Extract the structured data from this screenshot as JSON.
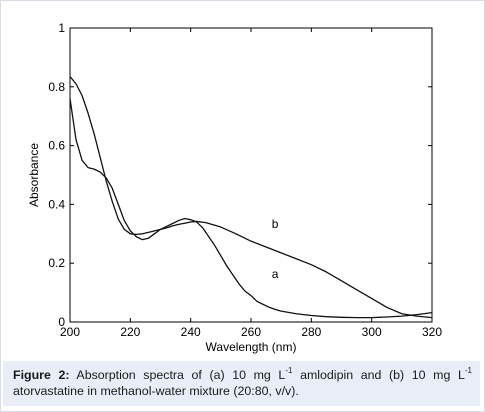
{
  "chart_data": {
    "type": "line",
    "xlabel": "Wavelength (nm)",
    "ylabel": "Absorbance",
    "xlim": [
      200,
      320
    ],
    "ylim": [
      0,
      1
    ],
    "x_ticks": [
      200,
      220,
      240,
      260,
      280,
      300,
      320
    ],
    "y_ticks": [
      0,
      0.2,
      0.4,
      0.6,
      0.8,
      1
    ],
    "x_tick_labels": [
      "200",
      "220",
      "240",
      "260",
      "280",
      "300",
      "320"
    ],
    "y_tick_labels": [
      "0",
      "0.2",
      "0.4",
      "0.6",
      "0.8",
      "1"
    ],
    "grid": false,
    "series": [
      {
        "name": "a",
        "x": [
          200,
          202,
          204,
          206,
          208,
          210,
          212,
          214,
          216,
          218,
          220,
          222,
          224,
          226,
          228,
          230,
          232,
          234,
          236,
          238,
          240,
          242,
          244,
          246,
          248,
          250,
          252,
          254,
          256,
          258,
          260,
          262,
          264,
          266,
          268,
          270,
          275,
          280,
          285,
          290,
          295,
          300,
          305,
          310,
          315,
          320
        ],
        "values": [
          0.76,
          0.62,
          0.55,
          0.525,
          0.52,
          0.51,
          0.49,
          0.455,
          0.4,
          0.345,
          0.31,
          0.29,
          0.28,
          0.285,
          0.3,
          0.315,
          0.325,
          0.335,
          0.345,
          0.352,
          0.348,
          0.34,
          0.32,
          0.29,
          0.26,
          0.225,
          0.19,
          0.16,
          0.13,
          0.105,
          0.09,
          0.07,
          0.06,
          0.05,
          0.043,
          0.037,
          0.028,
          0.022,
          0.018,
          0.016,
          0.015,
          0.015,
          0.017,
          0.02,
          0.025,
          0.032
        ]
      },
      {
        "name": "b",
        "x": [
          200,
          202,
          204,
          206,
          208,
          210,
          212,
          214,
          216,
          218,
          220,
          222,
          224,
          226,
          228,
          230,
          232,
          234,
          236,
          238,
          240,
          242,
          245,
          250,
          255,
          260,
          265,
          270,
          275,
          280,
          285,
          290,
          295,
          300,
          305,
          310,
          315,
          320
        ],
        "values": [
          0.835,
          0.81,
          0.77,
          0.71,
          0.64,
          0.56,
          0.48,
          0.41,
          0.35,
          0.315,
          0.3,
          0.298,
          0.3,
          0.305,
          0.31,
          0.315,
          0.32,
          0.327,
          0.332,
          0.336,
          0.34,
          0.342,
          0.338,
          0.323,
          0.3,
          0.275,
          0.255,
          0.235,
          0.215,
          0.195,
          0.17,
          0.14,
          0.11,
          0.08,
          0.05,
          0.028,
          0.02,
          0.015
        ]
      }
    ],
    "annotations": [
      "a",
      "b"
    ]
  },
  "caption": {
    "label": "Figure 2:",
    "line1_text": " Absorption spectra of (a) 10 mg L",
    "sup1": "-1",
    "line1_text2": " amlodipin and (b) 10 mg L",
    "sup2": "-1",
    "line2_text": "atorvastatine in methanol-water mixture (20:80, v/v)."
  },
  "colors": {
    "line": "#111111",
    "axis": "#000000",
    "caption_bg": "#e8edf7",
    "frame": "#d8dce6"
  }
}
